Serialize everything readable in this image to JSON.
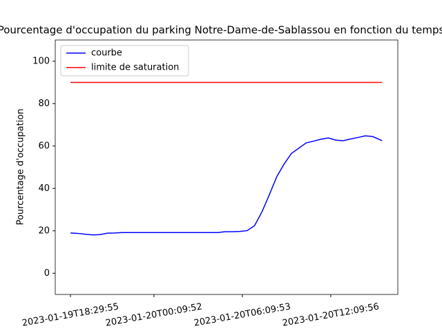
{
  "chart_data": {
    "type": "line",
    "title": "Pourcentage d'occupation du parking Notre-Dame-de-Sablassou en fonction du temps",
    "y_label": "Pourcentage d'occupation",
    "series": [
      {
        "name": "courbe",
        "color": "#0000ff",
        "x": [
          "2023-01-19T18:29:55",
          "2023-01-19T18:59:55",
          "2023-01-19T19:29:55",
          "2023-01-19T19:59:55",
          "2023-01-19T20:29:55",
          "2023-01-19T20:59:55",
          "2023-01-19T21:29:55",
          "2023-01-19T21:59:55",
          "2023-01-19T22:29:55",
          "2023-01-19T22:59:55",
          "2023-01-19T23:29:55",
          "2023-01-19T23:59:55",
          "2023-01-20T00:29:55",
          "2023-01-20T00:59:55",
          "2023-01-20T01:29:55",
          "2023-01-20T01:59:55",
          "2023-01-20T02:29:55",
          "2023-01-20T02:59:55",
          "2023-01-20T03:29:55",
          "2023-01-20T03:59:55",
          "2023-01-20T04:29:55",
          "2023-01-20T04:59:55",
          "2023-01-20T05:29:55",
          "2023-01-20T05:59:55",
          "2023-01-20T06:29:55",
          "2023-01-20T06:59:55",
          "2023-01-20T07:29:55",
          "2023-01-20T07:59:55",
          "2023-01-20T08:29:55",
          "2023-01-20T08:59:55",
          "2023-01-20T09:29:55",
          "2023-01-20T09:59:55",
          "2023-01-20T10:29:55",
          "2023-01-20T10:59:55",
          "2023-01-20T11:29:55",
          "2023-01-20T11:59:55",
          "2023-01-20T12:29:55",
          "2023-01-20T12:59:55",
          "2023-01-20T13:29:55",
          "2023-01-20T13:59:55",
          "2023-01-20T14:29:55",
          "2023-01-20T14:59:55",
          "2023-01-20T15:29:55",
          "2023-01-20T15:38:55"
        ],
        "values": [
          19.0,
          18.8,
          18.4,
          18.1,
          18.2,
          18.9,
          19.0,
          19.2,
          19.2,
          19.2,
          19.2,
          19.2,
          19.2,
          19.2,
          19.2,
          19.2,
          19.2,
          19.2,
          19.2,
          19.2,
          19.2,
          19.6,
          19.6,
          19.7,
          20.1,
          22.5,
          29.0,
          37.0,
          45.5,
          51.5,
          56.5,
          59.0,
          61.5,
          62.3,
          63.2,
          63.8,
          62.8,
          62.5,
          63.3,
          64.0,
          64.8,
          64.5,
          63.0,
          62.5
        ]
      },
      {
        "name": "limite de saturation",
        "color": "#ff0000",
        "x": [
          "2023-01-19T18:29:55",
          "2023-01-20T15:38:55"
        ],
        "values": [
          90,
          90
        ]
      }
    ],
    "xlim": [
      "2023-01-19T17:28:00",
      "2023-01-20T16:43:00"
    ],
    "xticks": [
      "2023-01-19T18:29:55",
      "2023-01-20T00:09:52",
      "2023-01-20T06:09:53",
      "2023-01-20T12:09:56"
    ],
    "ylim": [
      -10,
      110
    ],
    "yticks": [
      0,
      20,
      40,
      60,
      80,
      100
    ],
    "legend": "upper left",
    "grid": false
  }
}
